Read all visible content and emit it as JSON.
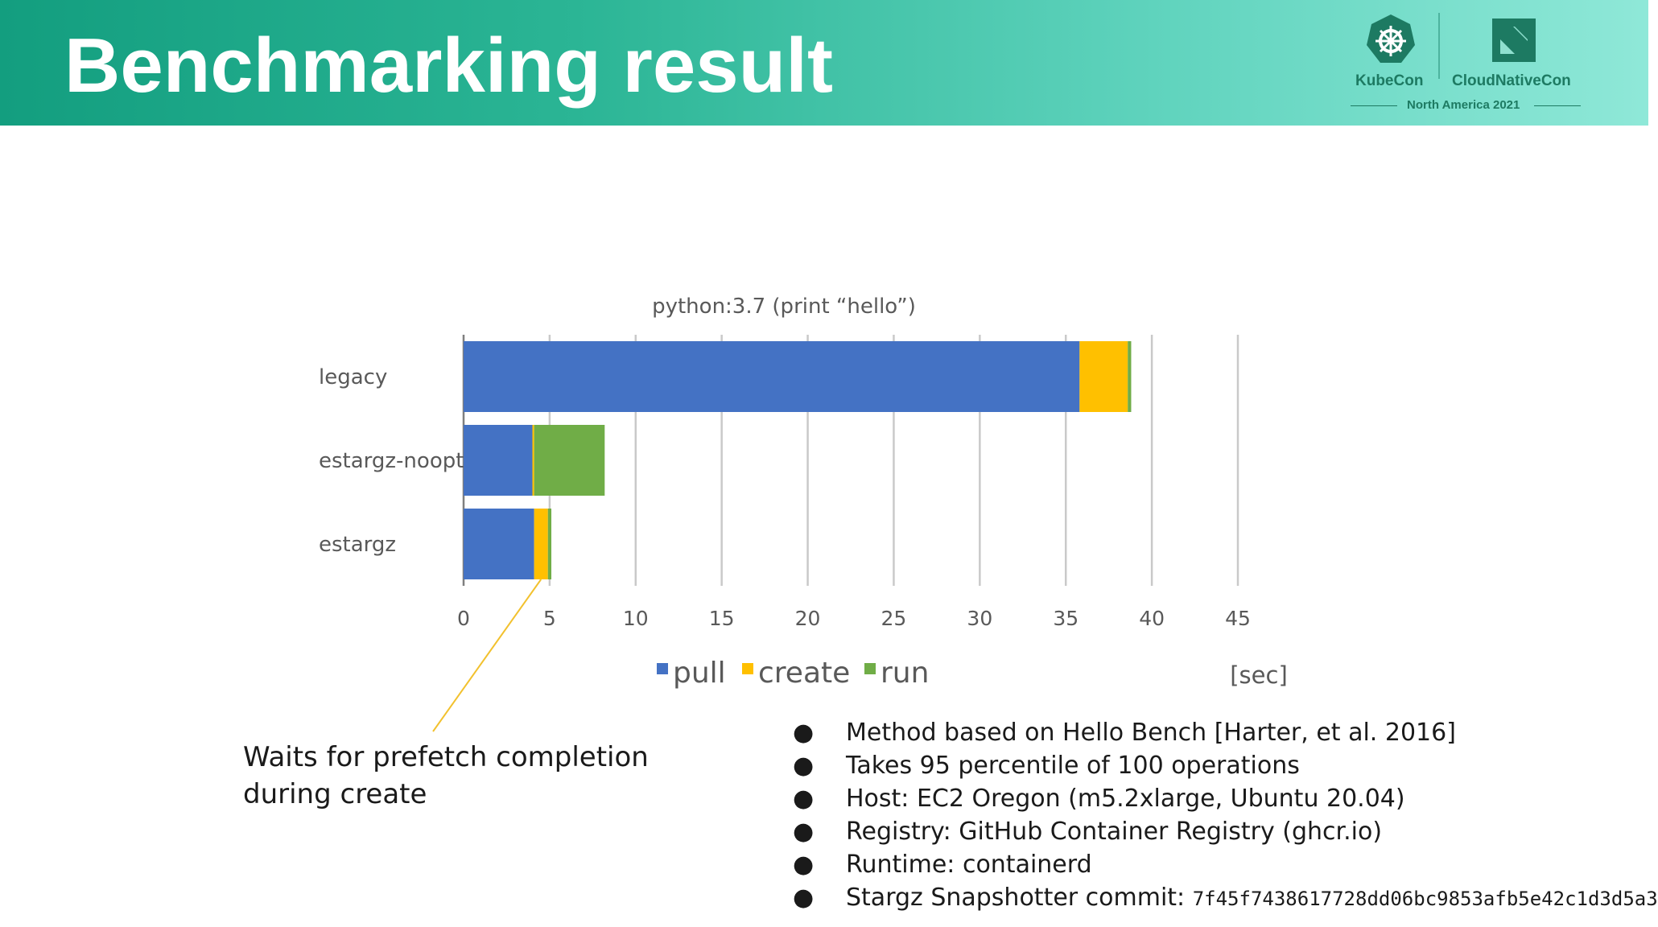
{
  "header": {
    "title": "Benchmarking result",
    "logo": {
      "left_label": "KubeCon",
      "right_label": "CloudNativeCon",
      "subtitle": "North America 2021",
      "left_icon": "kubernetes-helm-icon",
      "right_icon": "cncf-icon"
    }
  },
  "colors": {
    "header_start": "#139e7f",
    "header_end": "#8fe8d8",
    "pull": "#4472c4",
    "create": "#ffc000",
    "run": "#70ad47",
    "callout_line": "#f2c12e"
  },
  "chart_data": {
    "type": "bar",
    "orientation": "horizontal",
    "stacked": true,
    "title": "python:3.7 (print “hello”)",
    "categories": [
      "legacy",
      "estargz-noopt",
      "estargz"
    ],
    "series": [
      {
        "name": "pull",
        "color": "#4472c4",
        "values": [
          35.8,
          4.0,
          4.1
        ]
      },
      {
        "name": "create",
        "color": "#ffc000",
        "values": [
          2.8,
          0.1,
          0.8
        ]
      },
      {
        "name": "run",
        "color": "#70ad47",
        "values": [
          0.2,
          4.1,
          0.2
        ]
      }
    ],
    "xlim": [
      0,
      45
    ],
    "xticks": [
      0,
      5,
      10,
      15,
      20,
      25,
      30,
      35,
      40,
      45
    ],
    "xunit": "[sec]",
    "grid": true,
    "legend": "bottom"
  },
  "callout": {
    "lines": [
      "Waits for prefetch completion",
      "during create"
    ]
  },
  "notes": {
    "bullet_char": "●",
    "items": [
      "Method  based on Hello Bench [Harter, et al. 2016]",
      "Takes 95 percentile of 100 operations",
      "Host: EC2 Oregon (m5.2xlarge, Ubuntu 20.04)",
      "Registry: GitHub Container Registry (ghcr.io)",
      "Runtime: containerd"
    ],
    "commit_label": "Stargz Snapshotter commit: ",
    "commit_hash": "7f45f7438617728dd06bc9853afb5e42c1d3d5a3"
  }
}
